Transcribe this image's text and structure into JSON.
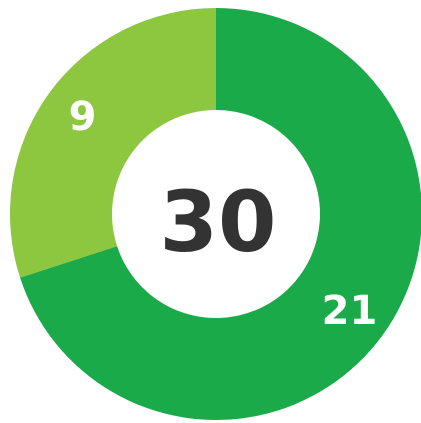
{
  "chart_data": {
    "type": "donut",
    "center_text": "30",
    "values": [
      21,
      9
    ],
    "colors": [
      "#1aaa4a",
      "#8dc63f"
    ],
    "start": "top",
    "direction": "clockwise"
  }
}
